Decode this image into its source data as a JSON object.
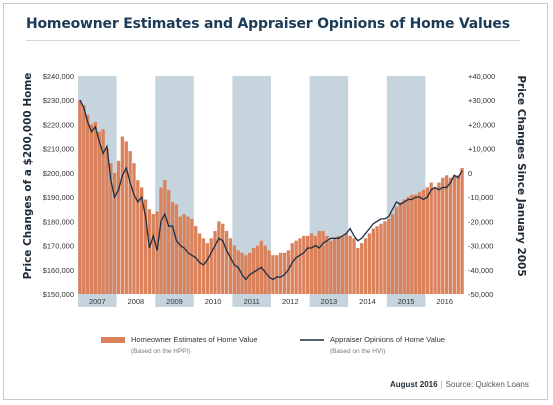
{
  "title": "Homeowner Estimates and Appraiser Opinions of Home Values",
  "footer": {
    "date": "August 2016",
    "source": "Source: Quicken Loans"
  },
  "colors": {
    "bar": "#d9825c",
    "line": "#1e2f45",
    "band": "#c6d5dd",
    "title": "#1c3b57"
  },
  "chart_data": {
    "type": "bar+line",
    "ylabel_left": "Price Changes of a $200,000 Home",
    "ylabel_right": "Price Changes Since January 2005",
    "left_ticks": [
      "$240,000",
      "$230,000",
      "$220,000",
      "$210,000",
      "$200,000",
      "$190,000",
      "$180,000",
      "$170,000",
      "$160,000",
      "$150,000"
    ],
    "right_ticks": [
      "+40,000",
      "+30,000",
      "+20,000",
      "+10,000",
      "0",
      "-10,000",
      "-20,000",
      "-30,000",
      "-40,000",
      "-50,000"
    ],
    "ylim_left": [
      150000,
      240000
    ],
    "ylim_right": [
      -50000,
      40000
    ],
    "years": [
      "2007",
      "2008",
      "2009",
      "2010",
      "2011",
      "2012",
      "2013",
      "2014",
      "2015",
      "2016"
    ],
    "series": [
      {
        "name": "Homeowner Estimates of Home Value",
        "note": "(Based on the HPPI)",
        "axis": "left",
        "type": "bar",
        "values": [
          230000,
          228000,
          224000,
          220000,
          221000,
          217000,
          218000,
          210000,
          204000,
          200000,
          205000,
          215000,
          213000,
          209000,
          204000,
          197000,
          194000,
          189000,
          185000,
          183000,
          184000,
          194000,
          197000,
          193000,
          188000,
          187000,
          182000,
          183000,
          182000,
          181000,
          178000,
          175000,
          173000,
          171000,
          173000,
          176000,
          180000,
          179000,
          176000,
          173000,
          170000,
          168000,
          167000,
          166000,
          167000,
          169000,
          170000,
          172000,
          170000,
          168000,
          166000,
          166000,
          167000,
          167000,
          168000,
          171000,
          172000,
          173000,
          174000,
          174000,
          175000,
          174000,
          176000,
          176000,
          174000,
          172000,
          173000,
          174000,
          174000,
          175000,
          174000,
          173000,
          169000,
          171000,
          173000,
          175000,
          177000,
          178000,
          179000,
          180000,
          181000,
          183000,
          186000,
          188000,
          189000,
          190000,
          191000,
          191000,
          192000,
          193000,
          194000,
          196000,
          194000,
          196000,
          198000,
          199000,
          198000,
          199000,
          199000,
          202000
        ]
      },
      {
        "name": "Appraiser Opinions of Home Value",
        "note": "(Based on the HVI)",
        "axis": "right",
        "type": "line",
        "values": [
          30000,
          27000,
          21000,
          17000,
          19000,
          13000,
          8000,
          11000,
          -3000,
          -10000,
          -7000,
          -1000,
          2000,
          -4000,
          -9000,
          -12000,
          -10000,
          -18000,
          -31000,
          -26000,
          -32000,
          -20000,
          -17000,
          -22000,
          -22000,
          -28000,
          -30000,
          -31000,
          -33000,
          -34000,
          -35000,
          -37000,
          -38000,
          -36000,
          -33000,
          -30000,
          -27000,
          -28000,
          -32000,
          -35000,
          -38000,
          -39000,
          -42000,
          -44000,
          -42000,
          -41000,
          -40000,
          -39000,
          -41000,
          -43000,
          -44000,
          -43000,
          -43000,
          -42000,
          -40000,
          -37000,
          -35000,
          -34000,
          -33000,
          -31000,
          -31000,
          -30000,
          -31000,
          -29000,
          -28000,
          -27000,
          -27000,
          -27000,
          -26000,
          -25000,
          -23000,
          -26000,
          -28000,
          -27000,
          -25000,
          -23000,
          -21000,
          -20000,
          -19000,
          -19000,
          -18000,
          -15000,
          -12000,
          -13000,
          -12000,
          -11000,
          -11000,
          -10000,
          -10000,
          -11000,
          -10000,
          -7000,
          -6000,
          -7000,
          -6000,
          -6000,
          -4000,
          -1000,
          -2000,
          1000
        ]
      }
    ],
    "legend_placement": "bottom"
  }
}
